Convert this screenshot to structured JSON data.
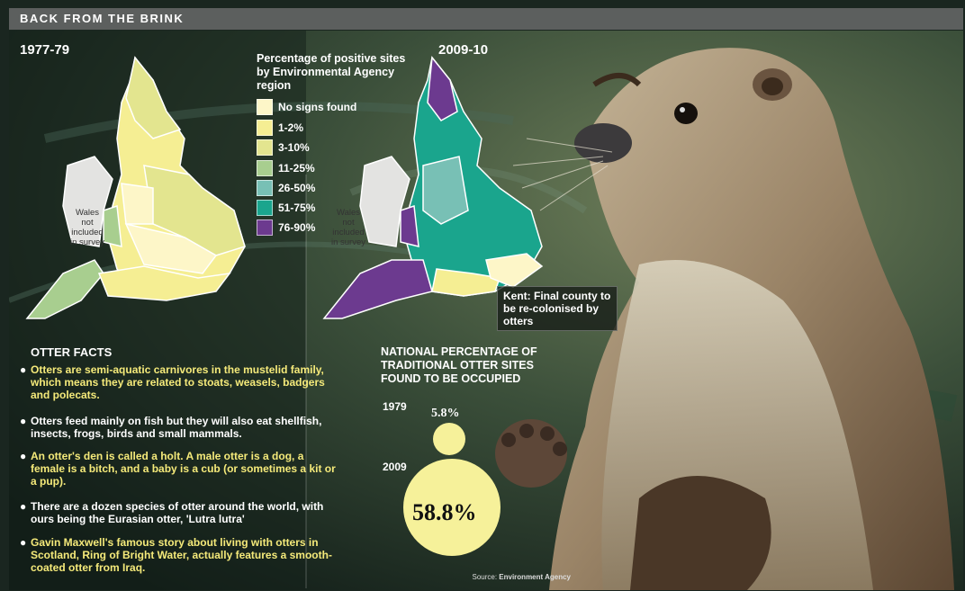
{
  "header": {
    "title": "BACK FROM THE BRINK"
  },
  "maps": {
    "left_period": "1977-79",
    "right_period": "2009-10",
    "wales_note": [
      "Wales",
      "not",
      "included",
      "in survey"
    ],
    "kent_note": "Kent: Final county to be re-colonised by otters"
  },
  "legend": {
    "title": "Percentage of positive sites by Environmental Agency region",
    "items": [
      {
        "label": "No signs found",
        "color": "#fdf6c8"
      },
      {
        "label": "1-2%",
        "color": "#f5ee93"
      },
      {
        "label": "3-10%",
        "color": "#e3e58f"
      },
      {
        "label": "11-25%",
        "color": "#a8ce8f"
      },
      {
        "label": "26-50%",
        "color": "#78c0b5"
      },
      {
        "label": "51-75%",
        "color": "#1aa58d"
      },
      {
        "label": "76-90%",
        "color": "#6c3a8f"
      }
    ]
  },
  "facts": {
    "title": "OTTER FACTS",
    "items": [
      {
        "text": "Otters are semi-aquatic carnivores in the mustelid family, which means they are related to stoats, weasels, badgers and polecats.",
        "color": "yellow"
      },
      {
        "text": "Otters feed mainly on fish but they will also eat shellfish, insects, frogs, birds and small mammals.",
        "color": "white"
      },
      {
        "text": "An otter's den is called a holt. A male otter is a dog, a female is a bitch, and a baby is a cub (or sometimes a kit or a pup).",
        "color": "yellow"
      },
      {
        "text": "There are a dozen species of otter around the world, with ours being the Eurasian otter, 'Lutra lutra'",
        "color": "white"
      },
      {
        "text": "Gavin Maxwell's famous story about living with otters in Scotland, Ring of Bright Water, actually features a smooth-coated otter from Iraq.",
        "color": "yellow"
      }
    ]
  },
  "national": {
    "title": "NATIONAL PERCENTAGE OF TRADITIONAL OTTER SITES FOUND TO BE OCCUPIED",
    "y1979_label": "1979",
    "y1979_value": "5.8%",
    "y2009_label": "2009",
    "y2009_value": "58.8%"
  },
  "source": {
    "prefix": "Source: ",
    "name": "Environment Agency"
  }
}
